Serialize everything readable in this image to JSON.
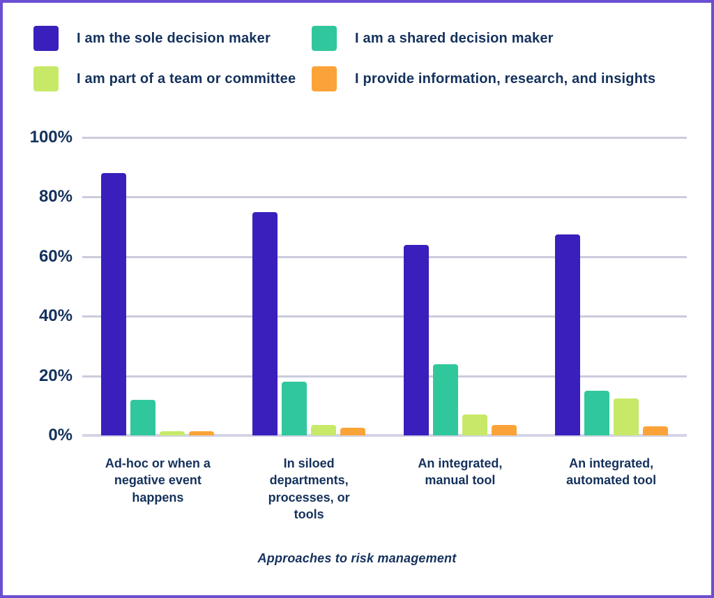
{
  "frame": {
    "border_color": "#6b4fd1",
    "background_color": "#ffffff"
  },
  "colors": {
    "text_navy": "#14315c",
    "gridline": "#cbcbde",
    "baseline": "#d4d4e6"
  },
  "legend": {
    "items": [
      {
        "label": "I am the sole decision maker",
        "color": "#3a1fbd"
      },
      {
        "label": "I am a shared decision maker",
        "color": "#31c79c"
      },
      {
        "label": "I am part of a team or committee",
        "color": "#c7e967"
      },
      {
        "label": "I provide information, research, and insights",
        "color": "#fba338"
      }
    ]
  },
  "chart_data": {
    "type": "bar",
    "title": "",
    "xlabel": "Approaches to risk management",
    "ylabel": "",
    "ylim": [
      0,
      100
    ],
    "ytick_labels": [
      "0%",
      "20%",
      "40%",
      "60%",
      "80%",
      "100%"
    ],
    "grid": true,
    "legend_position": "top-left",
    "categories": [
      "Ad-hoc or when a negative event happens",
      "In siloed departments, processes, or tools",
      "An integrated, manual tool",
      "An integrated, automated tool"
    ],
    "categories_display": [
      "Ad-hoc or when a\nnegative event\nhappens",
      "In siloed\ndepartments,\nprocesses, or\ntools",
      "An integrated,\nmanual tool",
      "An integrated,\nautomated tool"
    ],
    "series": [
      {
        "name": "I am the sole decision maker",
        "color": "#3a1fbd",
        "values": [
          88,
          75,
          64,
          67.5
        ]
      },
      {
        "name": "I am a shared decision maker",
        "color": "#31c79c",
        "values": [
          12,
          18,
          24,
          15
        ]
      },
      {
        "name": "I am part of a team or committee",
        "color": "#c7e967",
        "values": [
          1.5,
          3.5,
          7,
          12.5
        ]
      },
      {
        "name": "I provide information, research, and insights",
        "color": "#fba338",
        "values": [
          1.5,
          2.5,
          3.5,
          3
        ]
      }
    ]
  },
  "axis": {
    "title": "Approaches to risk management"
  }
}
